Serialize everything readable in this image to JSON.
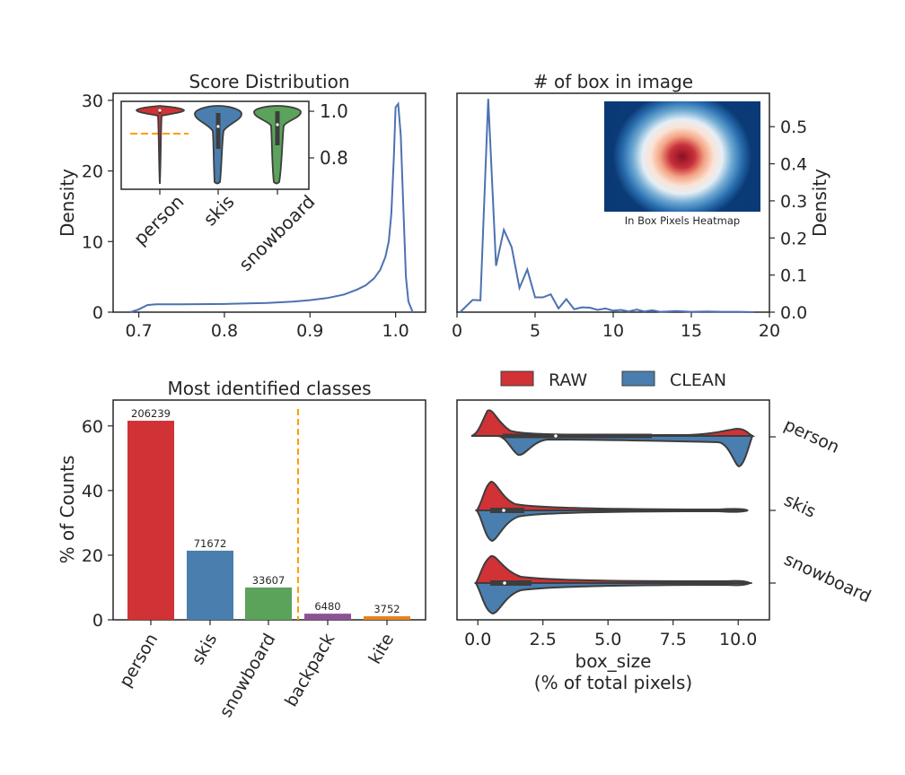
{
  "chart_data": [
    {
      "type": "line",
      "title": "Score Distribution",
      "xlabel": "",
      "ylabel": "Density",
      "xlim": [
        0.67,
        1.035
      ],
      "ylim": [
        0,
        31
      ],
      "xticks": [
        "0.7",
        "0.8",
        "0.9",
        "1.0"
      ],
      "yticks": [
        "0",
        "10",
        "20",
        "30"
      ],
      "x": [
        0.69,
        0.7,
        0.71,
        0.72,
        0.75,
        0.8,
        0.85,
        0.88,
        0.9,
        0.92,
        0.94,
        0.955,
        0.965,
        0.975,
        0.982,
        0.988,
        0.992,
        0.995,
        0.998,
        1.0,
        1.003,
        1.006,
        1.009,
        1.012,
        1.015,
        1.02
      ],
      "y": [
        0,
        0.4,
        1.0,
        1.1,
        1.1,
        1.15,
        1.3,
        1.5,
        1.7,
        2.0,
        2.5,
        3.2,
        3.8,
        4.8,
        6.0,
        7.8,
        10.0,
        14.0,
        22.0,
        29.0,
        29.5,
        25.0,
        15.0,
        5.0,
        1.5,
        0
      ],
      "inset": {
        "type": "violin",
        "categories": [
          "person",
          "skis",
          "snowboard"
        ],
        "colors": [
          "#d03235",
          "#4a7eae",
          "#5ba25b"
        ],
        "yticks": [
          "0.8",
          "1.0"
        ],
        "ylim": [
          0.72,
          1.04
        ],
        "medians": [
          1.0,
          0.93,
          0.96
        ],
        "threshold": 0.93,
        "threshold_color": "#ff9f00"
      }
    },
    {
      "type": "line",
      "title": "# of box in image",
      "xlabel": "",
      "ylabel": "Density",
      "xlim": [
        0,
        20
      ],
      "ylim": [
        0,
        0.59
      ],
      "xticks": [
        "0",
        "5",
        "10",
        "15",
        "20"
      ],
      "yticks": [
        "0.0",
        "0.1",
        "0.2",
        "0.3",
        "0.4",
        "0.5"
      ],
      "x": [
        0.2,
        1,
        1.5,
        2,
        2.5,
        3,
        3.5,
        4,
        4.5,
        5,
        5.5,
        6,
        6.5,
        7,
        7.5,
        8,
        8.5,
        9,
        9.5,
        10,
        10.5,
        11,
        11.5,
        12,
        12.5,
        13,
        13.5,
        14,
        15,
        16,
        17,
        18,
        19
      ],
      "y": [
        0,
        0.033,
        0.032,
        0.575,
        0.125,
        0.222,
        0.175,
        0.065,
        0.115,
        0.04,
        0.04,
        0.048,
        0.01,
        0.035,
        0.008,
        0.013,
        0.012,
        0.006,
        0.01,
        0.004,
        0.006,
        0.002,
        0.007,
        0.002,
        0.005,
        0.001,
        0.002,
        0.003,
        0.001,
        0.002,
        0.001,
        0.001,
        0
      ],
      "inset_label": "In Box Pixels Heatmap"
    },
    {
      "type": "bar",
      "title": "Most identified classes",
      "xlabel": "",
      "ylabel": "% of Counts",
      "ylim": [
        0,
        68
      ],
      "yticks": [
        "0",
        "20",
        "40",
        "60"
      ],
      "categories": [
        "person",
        "skis",
        "snowboard",
        "backpack",
        "kite"
      ],
      "values": [
        61.6,
        21.4,
        10.0,
        1.9,
        1.1
      ],
      "data_labels": [
        "206239",
        "71672",
        "33607",
        "6480",
        "3752"
      ],
      "colors": [
        "#d03235",
        "#4a7eae",
        "#5ba25b",
        "#8d5195",
        "#e8811e"
      ],
      "cutoff_line_color": "#ff9f00"
    },
    {
      "type": "violin",
      "title": "",
      "xlabel": "box_size",
      "xlabel2": "(% of total pixels)",
      "ylabel": "",
      "xlim": [
        -0.8,
        11.2
      ],
      "xticks": [
        "0.0",
        "2.5",
        "5.0",
        "7.5",
        "10.0"
      ],
      "categories": [
        "person",
        "skis",
        "snowboard"
      ],
      "legend": [
        "RAW",
        "CLEAN"
      ],
      "legend_colors": [
        "#d03235",
        "#4a7eae"
      ],
      "medians": [
        2.8,
        0.7,
        0.75
      ]
    }
  ]
}
